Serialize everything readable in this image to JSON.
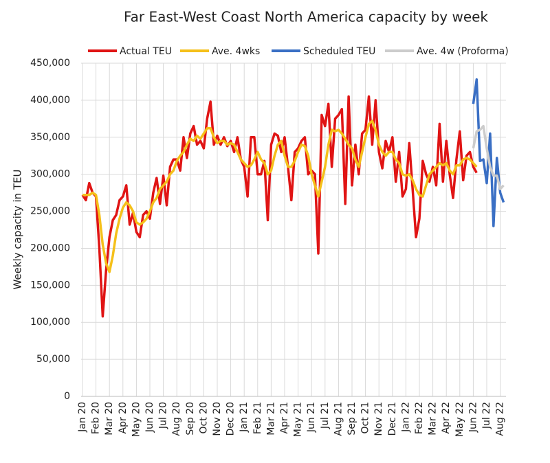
{
  "chart_data": {
    "type": "line",
    "title": "Far East-West Coast North America capacity by week",
    "y_label": "Weekly capacity in TEU",
    "categories": [
      "Jan 20",
      null,
      null,
      null,
      "Feb 20",
      null,
      null,
      null,
      "Mar 20",
      null,
      null,
      null,
      "Apr 20",
      null,
      null,
      null,
      "May 20",
      null,
      null,
      null,
      "Jun 20",
      null,
      null,
      null,
      "Jul 20",
      null,
      null,
      null,
      "Aug 20",
      null,
      null,
      null,
      "Sep 20",
      null,
      null,
      null,
      "Oct 20",
      null,
      null,
      null,
      "Nov 20",
      null,
      null,
      null,
      "Dec 20",
      null,
      null,
      null,
      "Jan 21",
      null,
      null,
      null,
      "Feb 21",
      null,
      null,
      null,
      "Mar 21",
      null,
      null,
      null,
      "Apr 21",
      null,
      null,
      null,
      "May 21",
      null,
      null,
      null,
      "Jun 21",
      null,
      null,
      null,
      "Jul 21",
      null,
      null,
      null,
      "Aug 21",
      null,
      null,
      null,
      "Sep 21",
      null,
      null,
      null,
      "Oct 21",
      null,
      null,
      null,
      "Nov 21",
      null,
      null,
      null,
      "Dec 21",
      null,
      null,
      null,
      "Jan 22",
      null,
      null,
      null,
      "Feb 22",
      null,
      null,
      null,
      "Mar 22",
      null,
      null,
      null,
      "Apr 22",
      null,
      null,
      null,
      "May 22",
      null,
      null,
      null,
      "Jun 22",
      null,
      null,
      null,
      "Jul 22",
      null,
      null,
      null,
      "Aug 22",
      null
    ],
    "series": [
      {
        "name": "Actual TEU",
        "color": "#e01414",
        "values": [
          272000,
          265000,
          288000,
          275000,
          270000,
          200000,
          108000,
          170000,
          215000,
          238000,
          245000,
          265000,
          270000,
          285000,
          232000,
          248000,
          222000,
          215000,
          245000,
          250000,
          240000,
          275000,
          295000,
          260000,
          298000,
          258000,
          310000,
          320000,
          320000,
          305000,
          350000,
          322000,
          355000,
          365000,
          340000,
          345000,
          335000,
          375000,
          398000,
          340000,
          352000,
          340000,
          350000,
          338000,
          345000,
          330000,
          350000,
          320000,
          310000,
          270000,
          350000,
          350000,
          300000,
          300000,
          318000,
          238000,
          340000,
          355000,
          352000,
          330000,
          350000,
          310000,
          265000,
          330000,
          335000,
          345000,
          350000,
          300000,
          305000,
          300000,
          193000,
          380000,
          365000,
          395000,
          310000,
          375000,
          380000,
          388000,
          260000,
          405000,
          285000,
          340000,
          300000,
          355000,
          360000,
          405000,
          340000,
          400000,
          330000,
          308000,
          345000,
          330000,
          350000,
          290000,
          330000,
          270000,
          280000,
          342000,
          280000,
          215000,
          240000,
          318000,
          300000,
          290000,
          310000,
          285000,
          368000,
          290000,
          345000,
          300000,
          268000,
          320000,
          358000,
          292000,
          325000,
          330000,
          310000,
          302000,
          null,
          null,
          null,
          null,
          null,
          null,
          null,
          null
        ]
      },
      {
        "name": "Ave. 4wks",
        "color": "#f5c01a",
        "values": [
          272000,
          272000,
          272000,
          275000,
          272000,
          245000,
          205000,
          180000,
          168000,
          190000,
          220000,
          240000,
          255000,
          262000,
          258000,
          250000,
          235000,
          232000,
          235000,
          240000,
          250000,
          262000,
          268000,
          280000,
          285000,
          290000,
          300000,
          305000,
          318000,
          325000,
          330000,
          340000,
          348000,
          345000,
          352000,
          348000,
          355000,
          362000,
          362000,
          350000,
          342000,
          345000,
          345000,
          340000,
          342000,
          340000,
          330000,
          320000,
          315000,
          310000,
          312000,
          320000,
          330000,
          320000,
          315000,
          300000,
          305000,
          325000,
          340000,
          345000,
          325000,
          310000,
          310000,
          318000,
          330000,
          340000,
          338000,
          325000,
          300000,
          285000,
          270000,
          290000,
          310000,
          340000,
          360000,
          358000,
          360000,
          355000,
          348000,
          340000,
          335000,
          320000,
          310000,
          330000,
          350000,
          368000,
          372000,
          360000,
          340000,
          330000,
          325000,
          330000,
          330000,
          320000,
          315000,
          300000,
          298000,
          300000,
          292000,
          280000,
          272000,
          270000,
          285000,
          300000,
          305000,
          310000,
          315000,
          312000,
          315000,
          305000,
          300000,
          312000,
          312000,
          320000,
          322000,
          320000,
          315000,
          310000,
          null,
          null,
          null,
          null,
          null,
          null,
          null,
          null
        ]
      },
      {
        "name": "Scheduled TEU",
        "color": "#3a6fc4",
        "values": [
          null,
          null,
          null,
          null,
          null,
          null,
          null,
          null,
          null,
          null,
          null,
          null,
          null,
          null,
          null,
          null,
          null,
          null,
          null,
          null,
          null,
          null,
          null,
          null,
          null,
          null,
          null,
          null,
          null,
          null,
          null,
          null,
          null,
          null,
          null,
          null,
          null,
          null,
          null,
          null,
          null,
          null,
          null,
          null,
          null,
          null,
          null,
          null,
          null,
          null,
          null,
          null,
          null,
          null,
          null,
          null,
          null,
          null,
          null,
          null,
          null,
          null,
          null,
          null,
          null,
          null,
          null,
          null,
          null,
          null,
          null,
          null,
          null,
          null,
          null,
          null,
          null,
          null,
          null,
          null,
          null,
          null,
          null,
          null,
          null,
          null,
          null,
          null,
          null,
          null,
          null,
          null,
          null,
          null,
          null,
          null,
          null,
          null,
          null,
          null,
          null,
          null,
          null,
          null,
          null,
          null,
          null,
          null,
          null,
          null,
          null,
          null,
          null,
          null,
          null,
          null,
          395000,
          428000,
          318000,
          320000,
          288000,
          355000,
          230000,
          322000,
          275000,
          262000
        ]
      },
      {
        "name": "Ave. 4w (Proforma)",
        "color": "#cccccc",
        "values": [
          null,
          null,
          null,
          null,
          null,
          null,
          null,
          null,
          null,
          null,
          null,
          null,
          null,
          null,
          null,
          null,
          null,
          null,
          null,
          null,
          null,
          null,
          null,
          null,
          null,
          null,
          null,
          null,
          null,
          null,
          null,
          null,
          null,
          null,
          null,
          null,
          null,
          null,
          null,
          null,
          null,
          null,
          null,
          null,
          null,
          null,
          null,
          null,
          null,
          null,
          null,
          null,
          null,
          null,
          null,
          null,
          null,
          null,
          null,
          null,
          null,
          null,
          null,
          null,
          null,
          null,
          null,
          null,
          null,
          null,
          null,
          null,
          null,
          null,
          null,
          null,
          null,
          null,
          null,
          null,
          null,
          null,
          null,
          null,
          null,
          null,
          null,
          null,
          null,
          null,
          null,
          null,
          null,
          null,
          null,
          null,
          null,
          null,
          null,
          null,
          null,
          null,
          null,
          null,
          null,
          null,
          null,
          null,
          null,
          null,
          null,
          null,
          null,
          null,
          null,
          null,
          335000,
          358000,
          360000,
          365000,
          335000,
          310000,
          298000,
          298000,
          280000,
          285000
        ]
      }
    ],
    "ylim": [
      0,
      450000
    ],
    "yticks": [
      0,
      {
        "value": 50000,
        "label": "50,000"
      },
      {
        "value": 100000,
        "label": "100,000"
      },
      {
        "value": 150000,
        "label": "150,000"
      },
      {
        "value": 200000,
        "label": "200,000"
      },
      {
        "value": 250000,
        "label": "250,000"
      },
      {
        "value": 300000,
        "label": "300,000"
      },
      {
        "value": 350000,
        "label": "350,000"
      },
      {
        "value": 400000,
        "label": "400,000"
      },
      {
        "value": 450000,
        "label": "450,000"
      }
    ],
    "grid": true,
    "legend": "top"
  }
}
